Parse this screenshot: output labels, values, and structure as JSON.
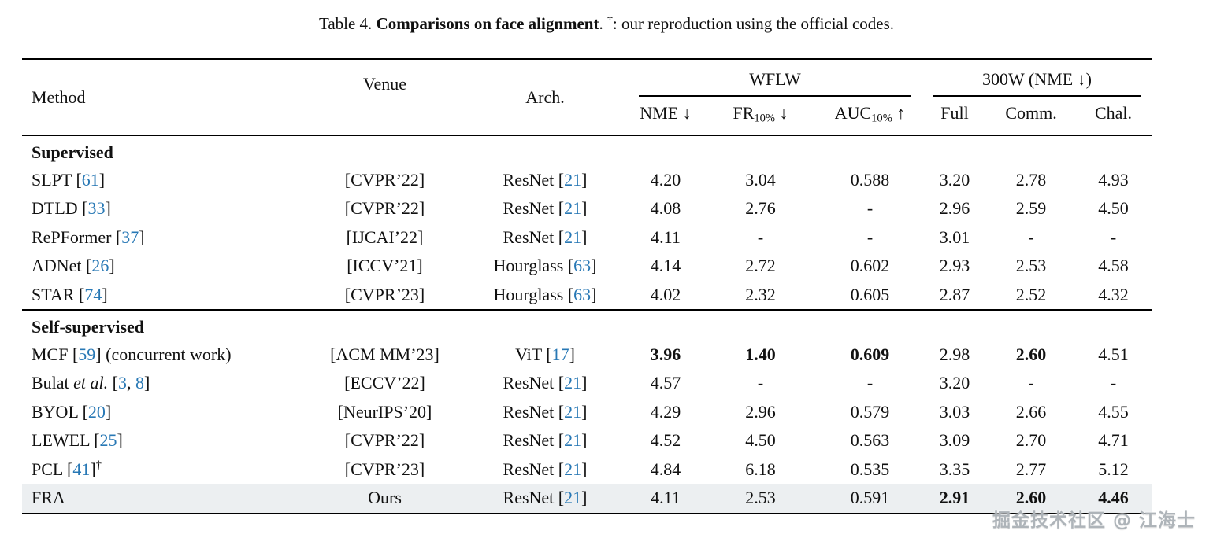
{
  "caption_markup": "Table 4. **Comparisons on face alignment**. ^†^: our reproduction using the official codes.",
  "table": {
    "header": {
      "method": "Method",
      "venue": "Venue",
      "arch": "Arch.",
      "group_wflw": "WFLW",
      "group_300w": "300W (NME ↓)",
      "sub": [
        "NME ↓",
        "FR~10%~ ↓",
        "AUC~10%~ ↑",
        "Full",
        "Comm.",
        "Chal."
      ]
    },
    "sections": [
      {
        "label": "Supervised",
        "rows": [
          {
            "cells": [
              "SLPT [*61*]",
              "[CVPR’22]",
              "ResNet [*21*]",
              "4.20",
              "3.04",
              "0.588",
              "3.20",
              "2.78",
              "4.93"
            ]
          },
          {
            "cells": [
              "DTLD [*33*]",
              "[CVPR’22]",
              "ResNet [*21*]",
              "4.08",
              "2.76",
              "-",
              "2.96",
              "2.59",
              "4.50"
            ]
          },
          {
            "cells": [
              "RePFormer [*37*]",
              "[IJCAI’22]",
              "ResNet [*21*]",
              "4.11",
              "-",
              "-",
              "3.01",
              "-",
              "-"
            ]
          },
          {
            "cells": [
              "ADNet [*26*]",
              "[ICCV’21]",
              "Hourglass [*63*]",
              "4.14",
              "2.72",
              "0.602",
              "2.93",
              "2.53",
              "4.58"
            ]
          },
          {
            "cells": [
              "STAR [*74*]",
              "[CVPR’23]",
              "Hourglass [*63*]",
              "4.02",
              "2.32",
              "0.605",
              "2.87",
              "2.52",
              "4.32"
            ]
          }
        ]
      },
      {
        "label": "Self-supervised",
        "rows": [
          {
            "cells": [
              "MCF [*59*] (concurrent work)",
              "[ACM MM’23]",
              "ViT [*17*]",
              "**3.96**",
              "**1.40**",
              "**0.609**",
              "2.98",
              "**2.60**",
              "4.51"
            ]
          },
          {
            "cells": [
              "Bulat _et al._ [*3*, *8*]",
              "[ECCV’22]",
              "ResNet [*21*]",
              "4.57",
              "-",
              "-",
              "3.20",
              "-",
              "-"
            ]
          },
          {
            "cells": [
              "BYOL [*20*]",
              "[NeurIPS’20]",
              "ResNet [*21*]",
              "4.29",
              "2.96",
              "0.579",
              "3.03",
              "2.66",
              "4.55"
            ]
          },
          {
            "cells": [
              "LEWEL [*25*]",
              "[CVPR’22]",
              "ResNet [*21*]",
              "4.52",
              "4.50",
              "0.563",
              "3.09",
              "2.70",
              "4.71"
            ]
          },
          {
            "cells": [
              "PCL [*41*]^†^",
              "[CVPR’23]",
              "ResNet [*21*]",
              "4.84",
              "6.18",
              "0.535",
              "3.35",
              "2.77",
              "5.12"
            ]
          },
          {
            "cells": [
              "FRA",
              "Ours",
              "ResNet [*21*]",
              "4.11",
              "2.53",
              "0.591",
              "**2.91**",
              "**2.60**",
              "**4.46**"
            ],
            "highlight": true
          }
        ]
      }
    ]
  },
  "watermark": "掘金技术社区 @ 江海士",
  "colors": {
    "citation_blue": "#2878b5",
    "highlight_row_bg": "#eceff1",
    "rule_black": "#000000",
    "watermark_gray": "#aeb4b9"
  }
}
